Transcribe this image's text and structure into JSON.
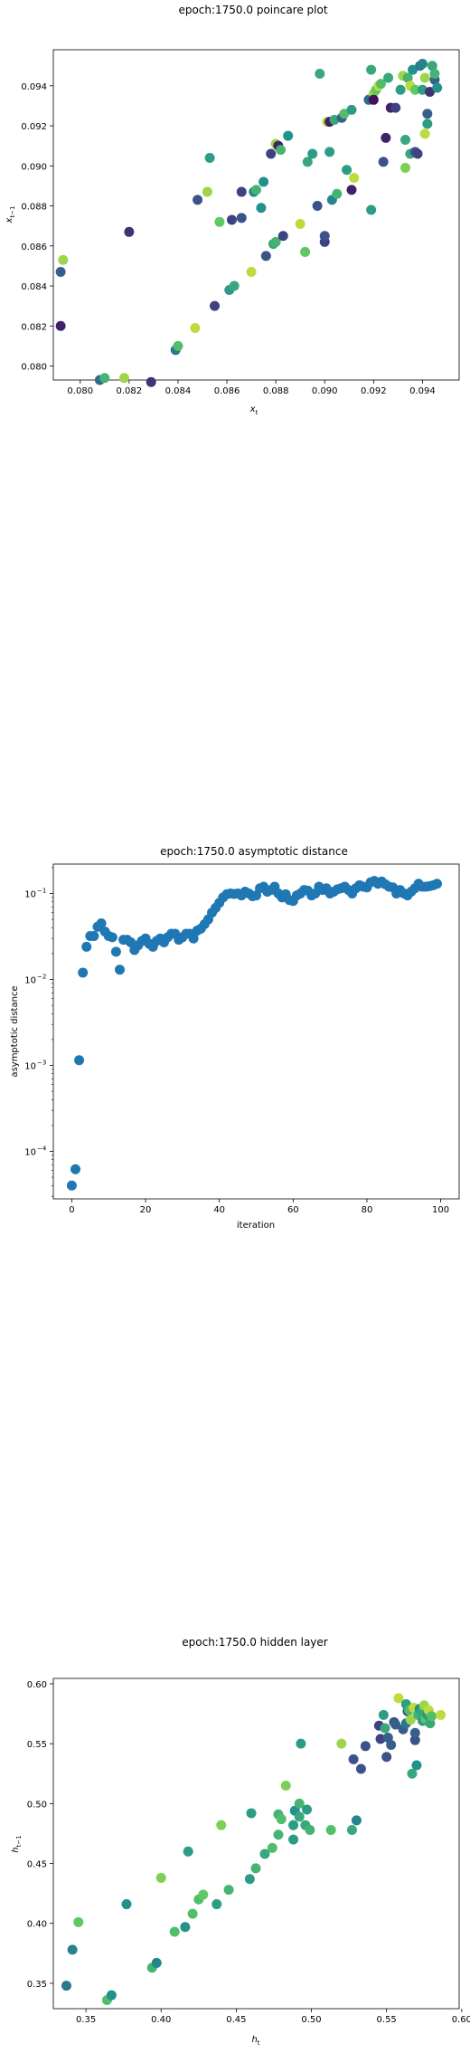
{
  "chart_data": [
    {
      "type": "scatter",
      "title": "epoch:1750.0 poincare plot",
      "xlabel": "x",
      "xlabel_sub": "t",
      "ylabel": "x",
      "ylabel_sub": "t−1",
      "xlim": [
        0.0789,
        0.0955
      ],
      "ylim": [
        0.0793,
        0.0958
      ],
      "xticks": [
        0.08,
        0.082,
        0.084,
        0.086,
        0.088,
        0.09,
        0.092,
        0.094
      ],
      "xtick_labels": [
        "0.080",
        "0.082",
        "0.084",
        "0.086",
        "0.088",
        "0.090",
        "0.092",
        "0.094"
      ],
      "yticks": [
        0.08,
        0.082,
        0.084,
        0.086,
        0.088,
        0.09,
        0.092,
        0.094
      ],
      "ytick_labels": [
        "0.080",
        "0.082",
        "0.084",
        "0.086",
        "0.088",
        "0.090",
        "0.092",
        "0.094"
      ],
      "grid": false,
      "colormap": "viridis",
      "points": [
        {
          "x": 0.0792,
          "y": 0.082,
          "c": 0.1
        },
        {
          "x": 0.0792,
          "y": 0.0847,
          "c": 0.3
        },
        {
          "x": 0.0793,
          "y": 0.0853,
          "c": 0.85
        },
        {
          "x": 0.0808,
          "y": 0.0793,
          "c": 0.35
        },
        {
          "x": 0.081,
          "y": 0.0794,
          "c": 0.65
        },
        {
          "x": 0.0818,
          "y": 0.0794,
          "c": 0.85
        },
        {
          "x": 0.082,
          "y": 0.0867,
          "c": 0.15
        },
        {
          "x": 0.0829,
          "y": 0.0792,
          "c": 0.15
        },
        {
          "x": 0.0839,
          "y": 0.0808,
          "c": 0.4
        },
        {
          "x": 0.084,
          "y": 0.081,
          "c": 0.7
        },
        {
          "x": 0.0847,
          "y": 0.0819,
          "c": 0.9
        },
        {
          "x": 0.0848,
          "y": 0.0883,
          "c": 0.25
        },
        {
          "x": 0.0852,
          "y": 0.0887,
          "c": 0.85
        },
        {
          "x": 0.0853,
          "y": 0.0904,
          "c": 0.55
        },
        {
          "x": 0.0855,
          "y": 0.083,
          "c": 0.2
        },
        {
          "x": 0.0857,
          "y": 0.0872,
          "c": 0.75
        },
        {
          "x": 0.0861,
          "y": 0.0838,
          "c": 0.55
        },
        {
          "x": 0.0862,
          "y": 0.0873,
          "c": 0.2
        },
        {
          "x": 0.0863,
          "y": 0.084,
          "c": 0.6
        },
        {
          "x": 0.0866,
          "y": 0.0887,
          "c": 0.2
        },
        {
          "x": 0.0866,
          "y": 0.0874,
          "c": 0.25
        },
        {
          "x": 0.087,
          "y": 0.0847,
          "c": 0.9
        },
        {
          "x": 0.0871,
          "y": 0.0887,
          "c": 0.45
        },
        {
          "x": 0.0872,
          "y": 0.0888,
          "c": 0.65
        },
        {
          "x": 0.0874,
          "y": 0.0879,
          "c": 0.5
        },
        {
          "x": 0.0875,
          "y": 0.0892,
          "c": 0.5
        },
        {
          "x": 0.0876,
          "y": 0.0855,
          "c": 0.25
        },
        {
          "x": 0.0878,
          "y": 0.0906,
          "c": 0.2
        },
        {
          "x": 0.0879,
          "y": 0.0861,
          "c": 0.6
        },
        {
          "x": 0.088,
          "y": 0.0862,
          "c": 0.65
        },
        {
          "x": 0.088,
          "y": 0.0911,
          "c": 0.85
        },
        {
          "x": 0.0881,
          "y": 0.091,
          "c": 0.1
        },
        {
          "x": 0.0882,
          "y": 0.0908,
          "c": 0.65
        },
        {
          "x": 0.0883,
          "y": 0.0865,
          "c": 0.2
        },
        {
          "x": 0.0885,
          "y": 0.0915,
          "c": 0.5
        },
        {
          "x": 0.089,
          "y": 0.0871,
          "c": 0.9
        },
        {
          "x": 0.0892,
          "y": 0.0857,
          "c": 0.75
        },
        {
          "x": 0.0893,
          "y": 0.0902,
          "c": 0.6
        },
        {
          "x": 0.0895,
          "y": 0.0906,
          "c": 0.55
        },
        {
          "x": 0.0897,
          "y": 0.088,
          "c": 0.25
        },
        {
          "x": 0.0898,
          "y": 0.0946,
          "c": 0.6
        },
        {
          "x": 0.09,
          "y": 0.0862,
          "c": 0.2
        },
        {
          "x": 0.09,
          "y": 0.0865,
          "c": 0.25
        },
        {
          "x": 0.0901,
          "y": 0.0922,
          "c": 0.9
        },
        {
          "x": 0.0902,
          "y": 0.0907,
          "c": 0.55
        },
        {
          "x": 0.0902,
          "y": 0.0922,
          "c": 0.1
        },
        {
          "x": 0.0903,
          "y": 0.0883,
          "c": 0.45
        },
        {
          "x": 0.0904,
          "y": 0.0923,
          "c": 0.6
        },
        {
          "x": 0.0905,
          "y": 0.0886,
          "c": 0.65
        },
        {
          "x": 0.0907,
          "y": 0.0924,
          "c": 0.3
        },
        {
          "x": 0.0908,
          "y": 0.0926,
          "c": 0.7
        },
        {
          "x": 0.0909,
          "y": 0.0898,
          "c": 0.55
        },
        {
          "x": 0.0911,
          "y": 0.0928,
          "c": 0.55
        },
        {
          "x": 0.0911,
          "y": 0.0888,
          "c": 0.1
        },
        {
          "x": 0.0912,
          "y": 0.0894,
          "c": 0.9
        },
        {
          "x": 0.0918,
          "y": 0.0933,
          "c": 0.35
        },
        {
          "x": 0.0919,
          "y": 0.0948,
          "c": 0.6
        },
        {
          "x": 0.0919,
          "y": 0.0878,
          "c": 0.55
        },
        {
          "x": 0.092,
          "y": 0.0936,
          "c": 0.85
        },
        {
          "x": 0.092,
          "y": 0.0933,
          "c": 0.05
        },
        {
          "x": 0.0921,
          "y": 0.0938,
          "c": 0.75
        },
        {
          "x": 0.0922,
          "y": 0.094,
          "c": 0.9
        },
        {
          "x": 0.0923,
          "y": 0.0941,
          "c": 0.7
        },
        {
          "x": 0.0924,
          "y": 0.0902,
          "c": 0.25
        },
        {
          "x": 0.0925,
          "y": 0.0914,
          "c": 0.1
        },
        {
          "x": 0.0926,
          "y": 0.0944,
          "c": 0.6
        },
        {
          "x": 0.0927,
          "y": 0.0929,
          "c": 0.1
        },
        {
          "x": 0.0929,
          "y": 0.0929,
          "c": 0.2
        },
        {
          "x": 0.0931,
          "y": 0.0938,
          "c": 0.55
        },
        {
          "x": 0.0932,
          "y": 0.0945,
          "c": 0.85
        },
        {
          "x": 0.0933,
          "y": 0.0913,
          "c": 0.6
        },
        {
          "x": 0.0933,
          "y": 0.0899,
          "c": 0.8
        },
        {
          "x": 0.0934,
          "y": 0.0944,
          "c": 0.65
        },
        {
          "x": 0.0935,
          "y": 0.094,
          "c": 0.9
        },
        {
          "x": 0.0935,
          "y": 0.0906,
          "c": 0.6
        },
        {
          "x": 0.0936,
          "y": 0.0948,
          "c": 0.5
        },
        {
          "x": 0.0937,
          "y": 0.0907,
          "c": 0.25
        },
        {
          "x": 0.0937,
          "y": 0.0938,
          "c": 0.75
        },
        {
          "x": 0.0938,
          "y": 0.0906,
          "c": 0.2
        },
        {
          "x": 0.0939,
          "y": 0.095,
          "c": 0.4
        },
        {
          "x": 0.094,
          "y": 0.0951,
          "c": 0.45
        },
        {
          "x": 0.094,
          "y": 0.0938,
          "c": 0.55
        },
        {
          "x": 0.0941,
          "y": 0.0944,
          "c": 0.85
        },
        {
          "x": 0.0941,
          "y": 0.0916,
          "c": 0.9
        },
        {
          "x": 0.0942,
          "y": 0.0926,
          "c": 0.3
        },
        {
          "x": 0.0942,
          "y": 0.0921,
          "c": 0.55
        },
        {
          "x": 0.0943,
          "y": 0.0937,
          "c": 0.15
        },
        {
          "x": 0.0944,
          "y": 0.095,
          "c": 0.6
        },
        {
          "x": 0.0945,
          "y": 0.0943,
          "c": 0.3
        },
        {
          "x": 0.0945,
          "y": 0.0946,
          "c": 0.65
        },
        {
          "x": 0.0946,
          "y": 0.0939,
          "c": 0.5
        }
      ]
    },
    {
      "type": "scatter",
      "title": "epoch:1750.0 asymptotic distance",
      "xlabel": "iteration",
      "ylabel": "asymptotic distance",
      "yscale": "log",
      "xlim": [
        -5,
        105
      ],
      "ylim": [
        2.8e-05,
        0.22
      ],
      "xticks": [
        0,
        20,
        40,
        60,
        80,
        100
      ],
      "xtick_labels": [
        "0",
        "20",
        "40",
        "60",
        "80",
        "100"
      ],
      "yticks": [
        0.0001,
        0.001,
        0.01,
        0.1
      ],
      "ytick_labels": [
        "10",
        "10",
        "10",
        "10"
      ],
      "ytick_exponents": [
        "−4",
        "−3",
        "−2",
        "−1"
      ],
      "grid": false,
      "color": "#1f77b4",
      "x": [
        0,
        1,
        2,
        3,
        4,
        5,
        6,
        7,
        8,
        9,
        10,
        11,
        12,
        13,
        14,
        15,
        16,
        17,
        18,
        19,
        20,
        21,
        22,
        23,
        24,
        25,
        26,
        27,
        28,
        29,
        30,
        31,
        32,
        33,
        34,
        35,
        36,
        37,
        38,
        39,
        40,
        41,
        42,
        43,
        44,
        45,
        46,
        47,
        48,
        49,
        50,
        51,
        52,
        53,
        54,
        55,
        56,
        57,
        58,
        59,
        60,
        61,
        62,
        63,
        64,
        65,
        66,
        67,
        68,
        69,
        70,
        71,
        72,
        73,
        74,
        75,
        76,
        77,
        78,
        79,
        80,
        81,
        82,
        83,
        84,
        85,
        86,
        87,
        88,
        89,
        90,
        91,
        92,
        93,
        94,
        95,
        96,
        97,
        98,
        99
      ],
      "y": [
        4e-05,
        6.2e-05,
        0.00115,
        0.012,
        0.024,
        0.032,
        0.032,
        0.041,
        0.045,
        0.036,
        0.032,
        0.031,
        0.021,
        0.013,
        0.029,
        0.029,
        0.027,
        0.022,
        0.025,
        0.028,
        0.03,
        0.026,
        0.024,
        0.028,
        0.03,
        0.027,
        0.031,
        0.034,
        0.034,
        0.029,
        0.031,
        0.034,
        0.034,
        0.03,
        0.037,
        0.039,
        0.044,
        0.05,
        0.06,
        0.068,
        0.078,
        0.09,
        0.098,
        0.1,
        0.099,
        0.1,
        0.095,
        0.105,
        0.1,
        0.093,
        0.095,
        0.115,
        0.12,
        0.105,
        0.11,
        0.12,
        0.1,
        0.09,
        0.098,
        0.084,
        0.082,
        0.095,
        0.1,
        0.11,
        0.108,
        0.095,
        0.1,
        0.12,
        0.11,
        0.115,
        0.1,
        0.105,
        0.112,
        0.115,
        0.12,
        0.11,
        0.1,
        0.115,
        0.125,
        0.12,
        0.118,
        0.135,
        0.14,
        0.13,
        0.138,
        0.128,
        0.12,
        0.118,
        0.1,
        0.11,
        0.1,
        0.095,
        0.105,
        0.115,
        0.13,
        0.12,
        0.12,
        0.122,
        0.125,
        0.13
      ]
    },
    {
      "type": "scatter",
      "title": "epoch:1750.0 hidden layer",
      "xlabel": "h",
      "xlabel_sub": "t",
      "ylabel": "h",
      "ylabel_sub": "t−1",
      "xlim": [
        0.3283,
        0.5983
      ],
      "ylim": [
        0.3288,
        0.6045
      ],
      "xticks": [
        0.35,
        0.4,
        0.45,
        0.5,
        0.55,
        0.6
      ],
      "xtick_labels": [
        "0.35",
        "0.40",
        "0.45",
        "0.50",
        "0.55",
        "0.60"
      ],
      "yticks": [
        0.35,
        0.4,
        0.45,
        0.5,
        0.55,
        0.6
      ],
      "ytick_labels": [
        "0.35",
        "0.40",
        "0.45",
        "0.50",
        "0.55",
        "0.60"
      ],
      "grid": false,
      "colormap": "viridis",
      "points": [
        {
          "x": 0.337,
          "y": 0.348,
          "c": 0.4
        },
        {
          "x": 0.341,
          "y": 0.378,
          "c": 0.45
        },
        {
          "x": 0.345,
          "y": 0.401,
          "c": 0.75
        },
        {
          "x": 0.364,
          "y": 0.336,
          "c": 0.7
        },
        {
          "x": 0.367,
          "y": 0.34,
          "c": 0.5
        },
        {
          "x": 0.377,
          "y": 0.416,
          "c": 0.5
        },
        {
          "x": 0.394,
          "y": 0.363,
          "c": 0.65
        },
        {
          "x": 0.397,
          "y": 0.367,
          "c": 0.45
        },
        {
          "x": 0.4,
          "y": 0.438,
          "c": 0.8
        },
        {
          "x": 0.409,
          "y": 0.393,
          "c": 0.7
        },
        {
          "x": 0.416,
          "y": 0.397,
          "c": 0.5
        },
        {
          "x": 0.418,
          "y": 0.46,
          "c": 0.55
        },
        {
          "x": 0.421,
          "y": 0.408,
          "c": 0.7
        },
        {
          "x": 0.425,
          "y": 0.42,
          "c": 0.7
        },
        {
          "x": 0.428,
          "y": 0.424,
          "c": 0.75
        },
        {
          "x": 0.437,
          "y": 0.416,
          "c": 0.55
        },
        {
          "x": 0.44,
          "y": 0.482,
          "c": 0.8
        },
        {
          "x": 0.445,
          "y": 0.428,
          "c": 0.65
        },
        {
          "x": 0.459,
          "y": 0.437,
          "c": 0.55
        },
        {
          "x": 0.46,
          "y": 0.492,
          "c": 0.55
        },
        {
          "x": 0.463,
          "y": 0.446,
          "c": 0.65
        },
        {
          "x": 0.469,
          "y": 0.458,
          "c": 0.6
        },
        {
          "x": 0.474,
          "y": 0.463,
          "c": 0.7
        },
        {
          "x": 0.478,
          "y": 0.474,
          "c": 0.65
        },
        {
          "x": 0.478,
          "y": 0.491,
          "c": 0.65
        },
        {
          "x": 0.48,
          "y": 0.487,
          "c": 0.7
        },
        {
          "x": 0.483,
          "y": 0.515,
          "c": 0.8
        },
        {
          "x": 0.488,
          "y": 0.47,
          "c": 0.55
        },
        {
          "x": 0.488,
          "y": 0.482,
          "c": 0.55
        },
        {
          "x": 0.489,
          "y": 0.494,
          "c": 0.5
        },
        {
          "x": 0.492,
          "y": 0.489,
          "c": 0.6
        },
        {
          "x": 0.492,
          "y": 0.5,
          "c": 0.65
        },
        {
          "x": 0.493,
          "y": 0.55,
          "c": 0.55
        },
        {
          "x": 0.496,
          "y": 0.482,
          "c": 0.6
        },
        {
          "x": 0.497,
          "y": 0.495,
          "c": 0.55
        },
        {
          "x": 0.499,
          "y": 0.478,
          "c": 0.65
        },
        {
          "x": 0.513,
          "y": 0.478,
          "c": 0.7
        },
        {
          "x": 0.52,
          "y": 0.55,
          "c": 0.85
        },
        {
          "x": 0.527,
          "y": 0.478,
          "c": 0.6
        },
        {
          "x": 0.528,
          "y": 0.537,
          "c": 0.25
        },
        {
          "x": 0.53,
          "y": 0.486,
          "c": 0.45
        },
        {
          "x": 0.533,
          "y": 0.529,
          "c": 0.25
        },
        {
          "x": 0.536,
          "y": 0.548,
          "c": 0.25
        },
        {
          "x": 0.545,
          "y": 0.565,
          "c": 0.2
        },
        {
          "x": 0.546,
          "y": 0.554,
          "c": 0.2
        },
        {
          "x": 0.548,
          "y": 0.574,
          "c": 0.55
        },
        {
          "x": 0.549,
          "y": 0.563,
          "c": 0.6
        },
        {
          "x": 0.55,
          "y": 0.539,
          "c": 0.25
        },
        {
          "x": 0.551,
          "y": 0.555,
          "c": 0.3
        },
        {
          "x": 0.553,
          "y": 0.549,
          "c": 0.3
        },
        {
          "x": 0.555,
          "y": 0.568,
          "c": 0.25
        },
        {
          "x": 0.556,
          "y": 0.566,
          "c": 0.3
        },
        {
          "x": 0.558,
          "y": 0.588,
          "c": 0.9
        },
        {
          "x": 0.561,
          "y": 0.562,
          "c": 0.3
        },
        {
          "x": 0.563,
          "y": 0.583,
          "c": 0.55
        },
        {
          "x": 0.563,
          "y": 0.567,
          "c": 0.4
        },
        {
          "x": 0.564,
          "y": 0.577,
          "c": 0.25
        },
        {
          "x": 0.565,
          "y": 0.578,
          "c": 0.7
        },
        {
          "x": 0.566,
          "y": 0.57,
          "c": 0.85
        },
        {
          "x": 0.567,
          "y": 0.525,
          "c": 0.6
        },
        {
          "x": 0.568,
          "y": 0.58,
          "c": 0.9
        },
        {
          "x": 0.569,
          "y": 0.553,
          "c": 0.25
        },
        {
          "x": 0.569,
          "y": 0.559,
          "c": 0.3
        },
        {
          "x": 0.57,
          "y": 0.532,
          "c": 0.5
        },
        {
          "x": 0.571,
          "y": 0.574,
          "c": 0.65
        },
        {
          "x": 0.572,
          "y": 0.579,
          "c": 0.5
        },
        {
          "x": 0.573,
          "y": 0.576,
          "c": 0.6
        },
        {
          "x": 0.574,
          "y": 0.569,
          "c": 0.55
        },
        {
          "x": 0.575,
          "y": 0.582,
          "c": 0.85
        },
        {
          "x": 0.576,
          "y": 0.571,
          "c": 0.75
        },
        {
          "x": 0.577,
          "y": 0.574,
          "c": 0.55
        },
        {
          "x": 0.578,
          "y": 0.578,
          "c": 0.9
        },
        {
          "x": 0.579,
          "y": 0.567,
          "c": 0.6
        },
        {
          "x": 0.58,
          "y": 0.573,
          "c": 0.7
        },
        {
          "x": 0.586,
          "y": 0.574,
          "c": 0.9
        }
      ]
    }
  ]
}
